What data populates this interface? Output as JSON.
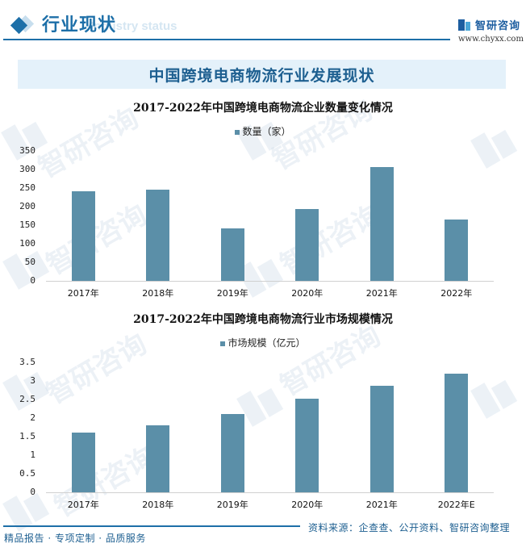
{
  "header": {
    "title": "行业现状",
    "subtitle_watermark": "Industry status",
    "brand_name": "智研咨询",
    "brand_url": "www.chyxx.com",
    "icon": "diamond-icon"
  },
  "banner": {
    "title": "中国跨境电商物流行业发展现状"
  },
  "colors": {
    "accent": "#1d6fa8",
    "bar": "#5b8fa8",
    "banner_bg": "#e4f1fa"
  },
  "chart_data": [
    {
      "type": "bar",
      "title": "2017-2022年中国跨境电商物流企业数量变化情况",
      "legend": [
        "数量（家）"
      ],
      "legend_position": "top",
      "categories": [
        "2017年",
        "2018年",
        "2019年",
        "2020年",
        "2021年",
        "2022年"
      ],
      "series": [
        {
          "name": "数量（家）",
          "values": [
            241,
            245,
            141,
            193,
            306,
            165
          ]
        }
      ],
      "xlabel": "",
      "ylabel": "",
      "ylim": [
        0,
        350
      ],
      "yticks": [
        "0",
        "50",
        "100",
        "150",
        "200",
        "250",
        "300",
        "350"
      ],
      "grid": false
    },
    {
      "type": "bar",
      "title": "2017-2022年中国跨境电商物流行业市场规模情况",
      "legend": [
        "市场规模（亿元）"
      ],
      "legend_position": "top",
      "categories": [
        "2017年",
        "2018年",
        "2019年",
        "2020年",
        "2021年",
        "2022年E"
      ],
      "series": [
        {
          "name": "市场规模（亿元）",
          "values": [
            1.61,
            1.8,
            2.11,
            2.52,
            2.87,
            3.2
          ]
        }
      ],
      "xlabel": "",
      "ylabel": "",
      "ylim": [
        0,
        3.5
      ],
      "yticks": [
        "0",
        "0.5",
        "1",
        "1.5",
        "2",
        "2.5",
        "3",
        "3.5"
      ],
      "grid": false
    }
  ],
  "footer": {
    "slogan": "精品报告 · 专项定制 · 品质服务",
    "source": "资料来源：企查查、公开资料、智研咨询整理",
    "watermark_brand": "智研咨询"
  }
}
